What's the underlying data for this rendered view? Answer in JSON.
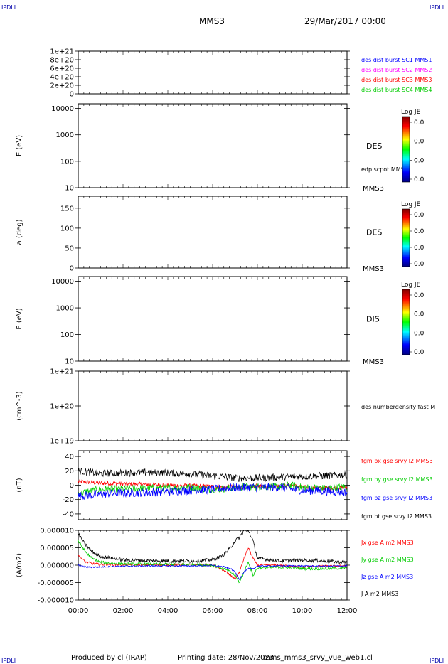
{
  "corner_labels": [
    "IPDLI",
    "IPDLI",
    "IPDLI",
    "IPDLI"
  ],
  "header": {
    "spacecraft": "MMS3",
    "date": "29/Mar/2017 00:00"
  },
  "footer": {
    "produced_by": "Produced by cl (IRAP)",
    "printing_date": "Printing date: 28/Nov/2023",
    "script_name": "mms_mms3_srvy_vue_web1.cl"
  },
  "colors": {
    "black": "#000000",
    "red": "#ff0000",
    "green": "#00cc00",
    "blue": "#0000ff",
    "magenta": "#ff00ff",
    "corner_blue": "#0000aa"
  },
  "chart_data": [
    {
      "type": "line",
      "title": "",
      "xlabel": "",
      "ylabel": "",
      "ylim": [
        0,
        1e+21
      ],
      "yticks": [
        "1e+21",
        "8e+20",
        "6e+20",
        "4e+20",
        "2e+20",
        "0"
      ],
      "legend": [
        {
          "text": "des dist burst SC1 MMS1",
          "color": "#0000ff"
        },
        {
          "text": "des dist burst SC2 MMS2",
          "color": "#ff00ff"
        },
        {
          "text": "des dist burst SC3 MMS3",
          "color": "#ff0000"
        },
        {
          "text": "des dist burst SC4 MMS4",
          "color": "#00cc00"
        }
      ],
      "series": [],
      "dashed_zero_line": true
    },
    {
      "type": "heatmap",
      "ylabel": "E (eV)",
      "yscale": "log",
      "ylim": [
        10,
        15000
      ],
      "yticks": [
        "10000",
        "1000",
        "100",
        "10"
      ],
      "instrument": "DES",
      "spacecraft": "MMS3",
      "overlay_label": "edp scpot MMS3",
      "colorbar": {
        "title": "Log JE",
        "ticks": [
          "0.0",
          "0.0",
          "0.0",
          "0.0"
        ]
      }
    },
    {
      "type": "heatmap",
      "ylabel": "a (deg)",
      "ylim": [
        0,
        180
      ],
      "yticks": [
        "150",
        "100",
        "50",
        "0"
      ],
      "instrument": "DES",
      "spacecraft": "MMS3",
      "colorbar": {
        "title": "Log JE",
        "ticks": [
          "0.0",
          "0.0",
          "0.0",
          "0.0"
        ]
      }
    },
    {
      "type": "heatmap",
      "ylabel": "E (eV)",
      "yscale": "log",
      "ylim": [
        10,
        15000
      ],
      "yticks": [
        "10000",
        "1000",
        "100",
        "10"
      ],
      "instrument": "DIS",
      "spacecraft": "MMS3",
      "colorbar": {
        "title": "Log JE",
        "ticks": [
          "0.0",
          "0.0",
          "0.0",
          "0.0"
        ]
      }
    },
    {
      "type": "line",
      "ylabel": "(cm^-3)",
      "yscale": "log",
      "ylim": [
        1e+19,
        1e+21
      ],
      "yticks": [
        "1e+21",
        "1e+20",
        "1e+19"
      ],
      "legend": [
        {
          "text": "des numberdensity fast M",
          "color": "#000000"
        }
      ],
      "series": []
    },
    {
      "type": "line",
      "ylabel": "(nT)",
      "ylim": [
        -48,
        48
      ],
      "yticks": [
        "40",
        "20",
        "0",
        "-20",
        "-40"
      ],
      "legend": [
        {
          "text": "fgm bx gse srvy l2 MMS3",
          "color": "#ff0000"
        },
        {
          "text": "fgm by gse srvy l2 MMS3",
          "color": "#00cc00"
        },
        {
          "text": "fgm bz gse srvy l2 MMS3",
          "color": "#0000ff"
        },
        {
          "text": "fgm bt gse srvy l2 MMS3",
          "color": "#000000"
        }
      ],
      "series": [
        {
          "name": "fgm bx gse srvy l2 MMS3",
          "color": "#ff0000",
          "x": [
            0,
            0.5,
            1,
            2,
            3,
            4,
            5,
            6,
            6.5,
            7,
            7.5,
            8,
            9,
            9.5,
            10,
            11,
            12
          ],
          "y": [
            5,
            4,
            3,
            2,
            1,
            0,
            -1,
            -2,
            -3,
            -2,
            -2,
            -1,
            -1,
            0,
            -3,
            -4,
            -3
          ],
          "noise": 3
        },
        {
          "name": "fgm by gse srvy l2 MMS3",
          "color": "#00cc00",
          "x": [
            0,
            0.5,
            1,
            2,
            3,
            4,
            5,
            6,
            6.5,
            7,
            7.5,
            8,
            9,
            9.5,
            10,
            11,
            12
          ],
          "y": [
            -12,
            -8,
            -6,
            -5,
            -4,
            -4,
            -3,
            -6,
            -5,
            -3,
            -2,
            -2,
            -2,
            0,
            -3,
            -4,
            -2
          ],
          "noise": 5
        },
        {
          "name": "fgm bz gse srvy l2 MMS3",
          "color": "#0000ff",
          "x": [
            0,
            0.5,
            1,
            2,
            3,
            4,
            5,
            6,
            6.5,
            7,
            7.5,
            8,
            9,
            9.5,
            10,
            11,
            12
          ],
          "y": [
            -15,
            -14,
            -12,
            -11,
            -10,
            -9,
            -7,
            -6,
            -4,
            -3,
            -3,
            -3,
            -3,
            -5,
            -7,
            -8,
            -10
          ],
          "noise": 6
        },
        {
          "name": "fgm bt gse srvy l2 MMS3",
          "color": "#000000",
          "x": [
            0,
            0.5,
            1,
            2,
            3,
            4,
            5,
            6,
            6.5,
            7,
            7.5,
            8,
            9,
            9.5,
            10,
            11,
            12
          ],
          "y": [
            20,
            18,
            16,
            17,
            18,
            17,
            16,
            13,
            12,
            10,
            10,
            10,
            11,
            12,
            12,
            13,
            14
          ],
          "noise": 5
        }
      ]
    },
    {
      "type": "line",
      "ylabel": "(A/m2)",
      "ylim": [
        -1e-05,
        1e-05
      ],
      "yticks": [
        "0.000010",
        "0.000005",
        "0.000000",
        "-0.000005",
        "-0.000010"
      ],
      "xticks": [
        "00:00",
        "02:00",
        "04:00",
        "06:00",
        "08:00",
        "10:00",
        "12:00"
      ],
      "xlim_hours": [
        0,
        12
      ],
      "legend": [
        {
          "text": "Jx gse A m2 MMS3",
          "color": "#ff0000"
        },
        {
          "text": "Jy gse A m2 MMS3",
          "color": "#00cc00"
        },
        {
          "text": "Jz gse A m2 MMS3",
          "color": "#0000ff"
        },
        {
          "text": "J A m2 MMS3",
          "color": "#000000"
        }
      ],
      "series": [
        {
          "name": "Jx gse A m2 MMS3",
          "color": "#ff0000",
          "x": [
            0,
            0.3,
            0.6,
            1,
            2,
            3,
            4,
            5,
            6,
            6.5,
            6.8,
            7,
            7.2,
            7.4,
            7.6,
            7.8,
            8,
            9,
            10,
            11,
            12
          ],
          "y": [
            3e-06,
            1e-06,
            5e-07,
            2e-07,
            1e-07,
            1e-07,
            1e-07,
            1e-07,
            0,
            -1.5e-06,
            -3e-06,
            -4e-06,
            -2e-06,
            2e-06,
            5e-06,
            2e-06,
            0,
            0,
            -5e-07,
            -3e-07,
            -2e-07
          ],
          "noise": 3e-07
        },
        {
          "name": "Jy gse A m2 MMS3",
          "color": "#00cc00",
          "x": [
            0,
            0.3,
            0.6,
            1,
            2,
            3,
            4,
            5,
            6,
            6.5,
            6.8,
            7,
            7.2,
            7.4,
            7.6,
            7.8,
            8,
            9,
            10,
            11,
            12
          ],
          "y": [
            7e-06,
            4e-06,
            2e-06,
            8e-07,
            3e-07,
            3e-07,
            2e-07,
            2e-07,
            0,
            -1e-06,
            -2e-06,
            -3e-06,
            -5e-06,
            -2e-06,
            1e-06,
            -3e-06,
            -8e-07,
            -6e-07,
            -1e-06,
            -1e-06,
            -8e-07
          ],
          "noise": 4e-07
        },
        {
          "name": "Jz gse A m2 MMS3",
          "color": "#0000ff",
          "x": [
            0,
            0.3,
            0.6,
            1,
            2,
            3,
            4,
            5,
            6,
            6.5,
            6.8,
            7,
            7.2,
            7.4,
            7.6,
            7.8,
            8,
            9,
            10,
            11,
            12
          ],
          "y": [
            0,
            -5e-07,
            -6e-07,
            -5e-07,
            -3e-07,
            -2e-07,
            -2e-07,
            -2e-07,
            -1e-07,
            -5e-07,
            -1e-06,
            -2e-06,
            -4e-06,
            -2e-06,
            -1e-06,
            -1e-06,
            -3e-07,
            -2e-07,
            -2e-07,
            -3e-07,
            -2e-07
          ],
          "noise": 2e-07
        },
        {
          "name": "J A m2 MMS3",
          "color": "#000000",
          "x": [
            0,
            0.3,
            0.6,
            1,
            2,
            3,
            4,
            5,
            6,
            6.5,
            6.8,
            7,
            7.2,
            7.4,
            7.6,
            7.8,
            8,
            9,
            10,
            11,
            12
          ],
          "y": [
            9e-06,
            6e-06,
            4e-06,
            2.5e-06,
            1.5e-06,
            1.3e-06,
            1.2e-06,
            1.2e-06,
            1.5e-06,
            3e-06,
            5e-06,
            7e-06,
            8e-06,
            1e-05,
            1e-05,
            7e-06,
            2e-06,
            1.2e-06,
            1.5e-06,
            1.2e-06,
            8e-07
          ],
          "noise": 5e-07
        }
      ]
    }
  ]
}
